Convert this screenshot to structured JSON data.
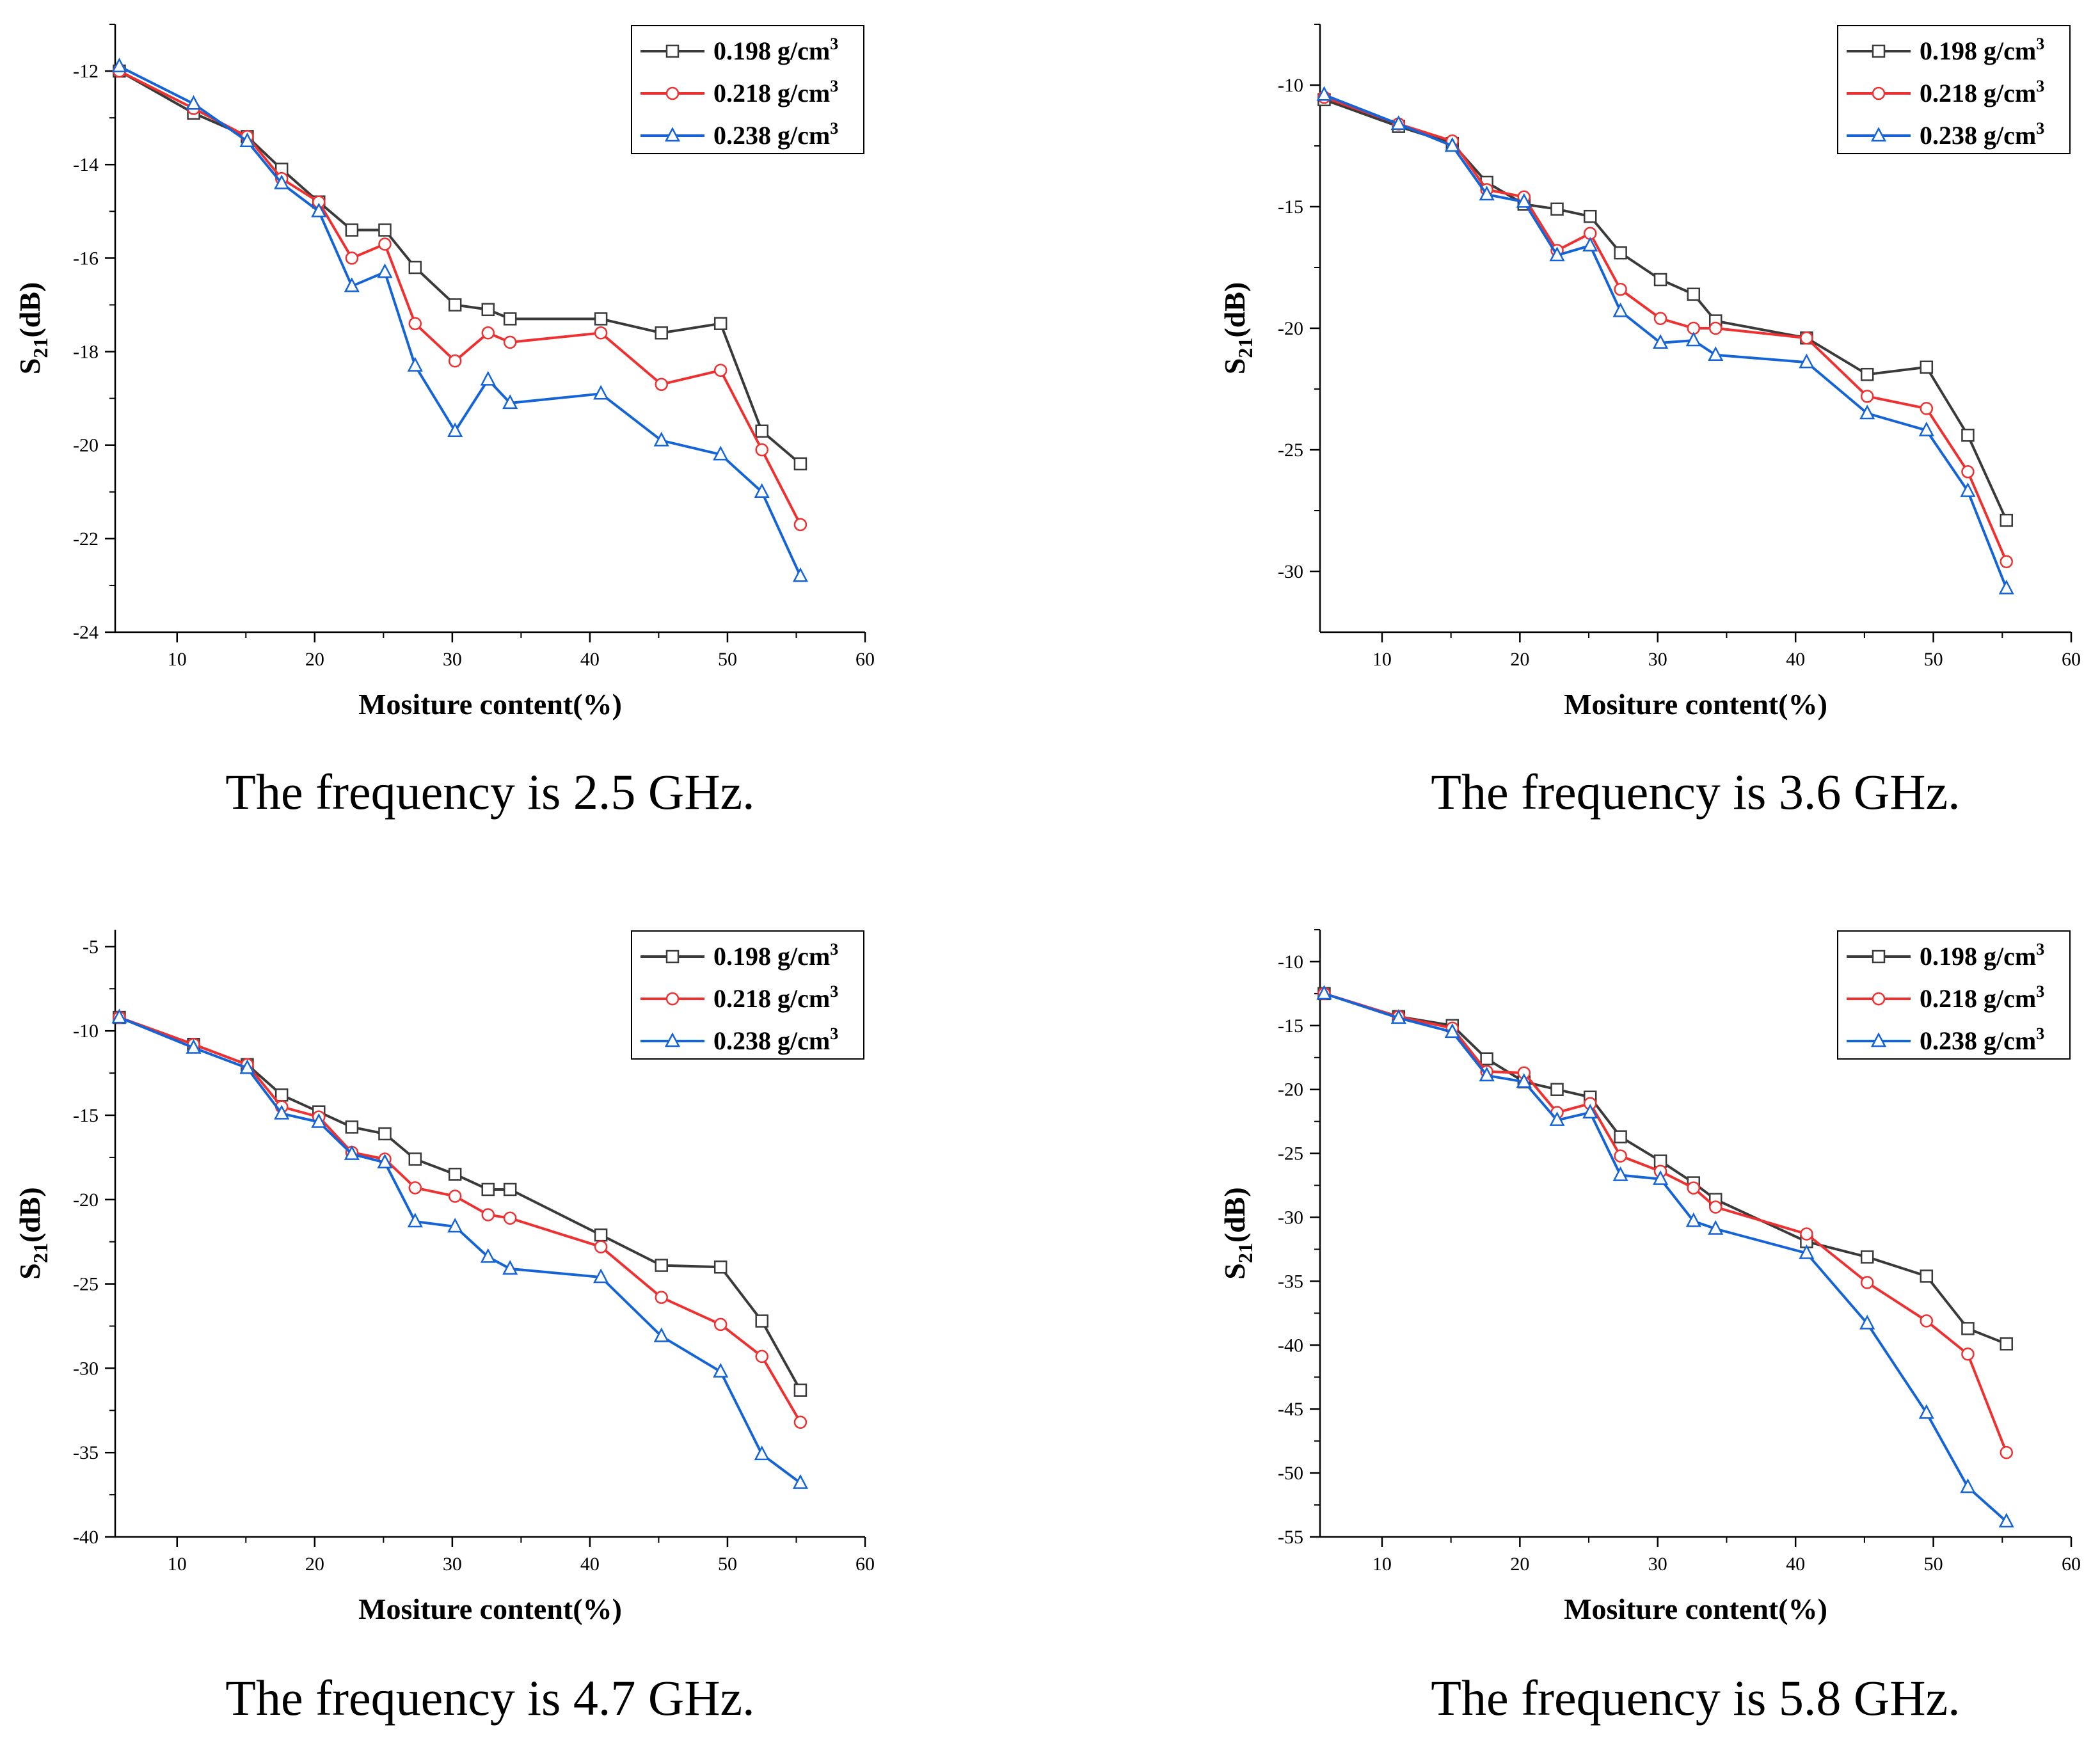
{
  "figure": {
    "panels_caption_note": "four panels",
    "colors": {
      "axis": "#000000",
      "s198": "#3a3a3a",
      "s218": "#ef3030",
      "s238": "#1464d8"
    }
  },
  "chart_data": [
    {
      "type": "line",
      "caption": "The frequency is 2.5 GHz.",
      "xlabel": "Mositure content(%)",
      "ylabel_main": "S",
      "ylabel_sub": "21",
      "ylabel_tail": "(dB)",
      "xlim": [
        5.5,
        60
      ],
      "ylim": [
        -24,
        -11
      ],
      "xticks": [
        10,
        20,
        30,
        40,
        50,
        60
      ],
      "yticks": [
        -24,
        -22,
        -20,
        -18,
        -16,
        -14,
        -12
      ],
      "grid": false,
      "legend": "top-right",
      "x": [
        5.8,
        11.2,
        15.1,
        17.6,
        20.3,
        22.7,
        25.1,
        27.3,
        30.2,
        32.6,
        34.2,
        40.8,
        45.2,
        49.5,
        52.5,
        55.3
      ],
      "series": [
        {
          "name": "0.198 g/cm",
          "sup": "3",
          "marker": "square",
          "values": [
            -12.0,
            -12.9,
            -13.4,
            -14.1,
            -14.8,
            -15.4,
            -15.4,
            -16.2,
            -17.0,
            -17.1,
            -17.3,
            -17.3,
            -17.6,
            -17.4,
            -19.7,
            -20.4
          ]
        },
        {
          "name": "0.218 g/cm",
          "sup": "3",
          "marker": "circle",
          "values": [
            -12.0,
            -12.8,
            -13.4,
            -14.3,
            -14.8,
            -16.0,
            -15.7,
            -17.4,
            -18.2,
            -17.6,
            -17.8,
            -17.6,
            -18.7,
            -18.4,
            -20.1,
            -21.7
          ]
        },
        {
          "name": "0.238 g/cm",
          "sup": "3",
          "marker": "triangle",
          "values": [
            -11.9,
            -12.7,
            -13.5,
            -14.4,
            -15.0,
            -16.6,
            -16.3,
            -18.3,
            -19.7,
            -18.6,
            -19.1,
            -18.9,
            -19.9,
            -20.2,
            -21.0,
            -22.8
          ]
        }
      ]
    },
    {
      "type": "line",
      "caption": "The frequency is 3.6 GHz.",
      "xlabel": "Mositure content(%)",
      "ylabel_main": "S",
      "ylabel_sub": "21",
      "ylabel_tail": "(dB)",
      "xlim": [
        5.5,
        60
      ],
      "ylim": [
        -32.5,
        -7.5
      ],
      "xticks": [
        10,
        20,
        30,
        40,
        50,
        60
      ],
      "yticks": [
        -30,
        -25,
        -20,
        -15,
        -10
      ],
      "grid": false,
      "legend": "top-right",
      "x": [
        5.8,
        11.2,
        15.1,
        17.6,
        20.3,
        22.7,
        25.1,
        27.3,
        30.2,
        32.6,
        34.2,
        40.8,
        45.2,
        49.5,
        52.5,
        55.3
      ],
      "series": [
        {
          "name": "0.198 g/cm",
          "sup": "3",
          "marker": "square",
          "values": [
            -10.6,
            -11.7,
            -12.4,
            -14.0,
            -14.9,
            -15.1,
            -15.4,
            -16.9,
            -18.0,
            -18.6,
            -19.7,
            -20.4,
            -21.9,
            -21.6,
            -24.4,
            -27.9
          ]
        },
        {
          "name": "0.218 g/cm",
          "sup": "3",
          "marker": "circle",
          "values": [
            -10.5,
            -11.6,
            -12.3,
            -14.3,
            -14.6,
            -16.8,
            -16.1,
            -18.4,
            -19.6,
            -20.0,
            -20.0,
            -20.4,
            -22.8,
            -23.3,
            -25.9,
            -29.6
          ]
        },
        {
          "name": "0.238 g/cm",
          "sup": "3",
          "marker": "triangle",
          "values": [
            -10.4,
            -11.6,
            -12.5,
            -14.5,
            -14.8,
            -17.0,
            -16.6,
            -19.3,
            -20.6,
            -20.5,
            -21.1,
            -21.4,
            -23.5,
            -24.2,
            -26.7,
            -30.7
          ]
        }
      ]
    },
    {
      "type": "line",
      "caption": "The frequency is 4.7 GHz.",
      "xlabel": "Mositure content(%)",
      "ylabel_main": "S",
      "ylabel_sub": "21",
      "ylabel_tail": "(dB)",
      "xlim": [
        5.5,
        60
      ],
      "ylim": [
        -40,
        -4
      ],
      "xticks": [
        10,
        20,
        30,
        40,
        50,
        60
      ],
      "yticks": [
        -40,
        -35,
        -30,
        -25,
        -20,
        -15,
        -10,
        -5
      ],
      "grid": false,
      "legend": "top-right",
      "x": [
        5.8,
        11.2,
        15.1,
        17.6,
        20.3,
        22.7,
        25.1,
        27.3,
        30.2,
        32.6,
        34.2,
        40.8,
        45.2,
        49.5,
        52.5,
        55.3
      ],
      "series": [
        {
          "name": "0.198 g/cm",
          "sup": "3",
          "marker": "square",
          "values": [
            -9.2,
            -10.8,
            -12.0,
            -13.8,
            -14.8,
            -15.7,
            -16.1,
            -17.6,
            -18.5,
            -19.4,
            -19.4,
            -22.1,
            -23.9,
            -24.0,
            -27.2,
            -31.3
          ]
        },
        {
          "name": "0.218 g/cm",
          "sup": "3",
          "marker": "circle",
          "values": [
            -9.2,
            -10.8,
            -12.0,
            -14.5,
            -15.1,
            -17.2,
            -17.6,
            -19.3,
            -19.8,
            -20.9,
            -21.1,
            -22.8,
            -25.8,
            -27.4,
            -29.3,
            -33.2
          ]
        },
        {
          "name": "0.238 g/cm",
          "sup": "3",
          "marker": "triangle",
          "values": [
            -9.2,
            -11.0,
            -12.2,
            -14.9,
            -15.4,
            -17.3,
            -17.8,
            -21.3,
            -21.6,
            -23.4,
            -24.1,
            -24.6,
            -28.1,
            -30.2,
            -35.1,
            -36.8
          ]
        }
      ]
    },
    {
      "type": "line",
      "caption": "The frequency is 5.8 GHz.",
      "xlabel": "Mositure content(%)",
      "ylabel_main": "S",
      "ylabel_sub": "21",
      "ylabel_tail": "(dB)",
      "xlim": [
        5.5,
        60
      ],
      "ylim": [
        -55,
        -7.5
      ],
      "xticks": [
        10,
        20,
        30,
        40,
        50,
        60
      ],
      "yticks": [
        -55,
        -50,
        -45,
        -40,
        -35,
        -30,
        -25,
        -20,
        -15,
        -10
      ],
      "grid": false,
      "legend": "top-right",
      "x": [
        5.8,
        11.2,
        15.1,
        17.6,
        20.3,
        22.7,
        25.1,
        27.3,
        30.2,
        32.6,
        34.2,
        40.8,
        45.2,
        49.5,
        52.5,
        55.3
      ],
      "series": [
        {
          "name": "0.198 g/cm",
          "sup": "3",
          "marker": "square",
          "values": [
            -12.5,
            -14.3,
            -15.0,
            -17.6,
            -19.4,
            -20.0,
            -20.6,
            -23.7,
            -25.6,
            -27.3,
            -28.6,
            -31.9,
            -33.1,
            -34.6,
            -38.7,
            -39.9
          ]
        },
        {
          "name": "0.218 g/cm",
          "sup": "3",
          "marker": "circle",
          "values": [
            -12.5,
            -14.3,
            -15.2,
            -18.6,
            -18.7,
            -21.8,
            -21.1,
            -25.2,
            -26.4,
            -27.7,
            -29.2,
            -31.3,
            -35.1,
            -38.1,
            -40.7,
            -48.4
          ]
        },
        {
          "name": "0.238 g/cm",
          "sup": "3",
          "marker": "triangle",
          "values": [
            -12.5,
            -14.4,
            -15.5,
            -18.9,
            -19.4,
            -22.4,
            -21.8,
            -26.7,
            -27.0,
            -30.3,
            -30.9,
            -32.8,
            -38.3,
            -45.3,
            -51.1,
            -53.8
          ]
        }
      ]
    }
  ]
}
